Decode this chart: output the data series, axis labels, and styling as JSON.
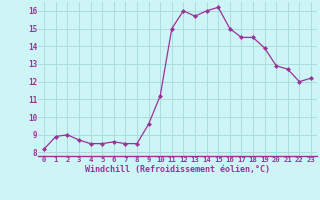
{
  "x": [
    0,
    1,
    2,
    3,
    4,
    5,
    6,
    7,
    8,
    9,
    10,
    11,
    12,
    13,
    14,
    15,
    16,
    17,
    18,
    19,
    20,
    21,
    22,
    23
  ],
  "y": [
    8.2,
    8.9,
    9.0,
    8.7,
    8.5,
    8.5,
    8.6,
    8.5,
    8.5,
    9.6,
    11.2,
    15.0,
    16.0,
    15.7,
    16.0,
    16.2,
    15.0,
    14.5,
    14.5,
    13.9,
    12.9,
    12.7,
    12.0,
    12.2
  ],
  "line_color": "#993399",
  "marker": "D",
  "marker_size": 2.0,
  "bg_color": "#cef5f5",
  "grid_color": "#aadddd",
  "xlabel": "Windchill (Refroidissement éolien,°C)",
  "xlabel_color": "#993399",
  "tick_color": "#993399",
  "spine_color": "#993399",
  "ylim": [
    7.8,
    16.5
  ],
  "xlim": [
    -0.5,
    23.5
  ],
  "yticks": [
    8,
    9,
    10,
    11,
    12,
    13,
    14,
    15,
    16
  ],
  "xticks": [
    0,
    1,
    2,
    3,
    4,
    5,
    6,
    7,
    8,
    9,
    10,
    11,
    12,
    13,
    14,
    15,
    16,
    17,
    18,
    19,
    20,
    21,
    22,
    23
  ]
}
